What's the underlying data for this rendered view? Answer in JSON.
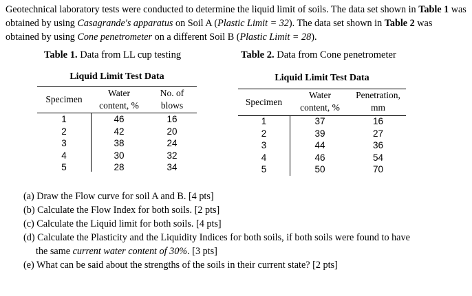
{
  "intro": {
    "p1": "Geotechnical laboratory tests were conducted to determine the liquid limit of soils. The data set shown in ",
    "table1_ref": "Table 1",
    "p2": " was obtained by using ",
    "apparatus1": "Casagrande's apparatus",
    "p3": " on Soil A (",
    "pl_a": "Plastic Limit = 32",
    "p4": "). The data set shown in ",
    "table2_ref": "Table 2",
    "p5": " was obtained by using ",
    "apparatus2": "Cone penetrometer",
    "p6": " on a different Soil B (",
    "pl_b": "Plastic Limit = 28",
    "p7": ")."
  },
  "table1": {
    "caption_label": "Table 1.",
    "caption_text": " Data from LL cup testing",
    "title": "Liquid Limit Test Data",
    "headers": {
      "specimen": "Specimen",
      "water_line1": "Water",
      "water_line2": "content, %",
      "blows_line1": "No. of",
      "blows_line2": "blows"
    },
    "rows": [
      {
        "specimen": "1",
        "water": "46",
        "blows": "16"
      },
      {
        "specimen": "2",
        "water": "42",
        "blows": "20"
      },
      {
        "specimen": "3",
        "water": "38",
        "blows": "24"
      },
      {
        "specimen": "4",
        "water": "30",
        "blows": "32"
      },
      {
        "specimen": "5",
        "water": "28",
        "blows": "34"
      }
    ]
  },
  "table2": {
    "caption_label": "Table 2.",
    "caption_text": " Data from Cone penetrometer",
    "title": "Liquid Limit Test Data",
    "headers": {
      "specimen": "Specimen",
      "water_line1": "Water",
      "water_line2": "content, %",
      "pen_line1": "Penetration,",
      "pen_line2": "mm"
    },
    "rows": [
      {
        "specimen": "1",
        "water": "37",
        "pen": "16"
      },
      {
        "specimen": "2",
        "water": "39",
        "pen": "27"
      },
      {
        "specimen": "3",
        "water": "44",
        "pen": "36"
      },
      {
        "specimen": "4",
        "water": "46",
        "pen": "54"
      },
      {
        "specimen": "5",
        "water": "50",
        "pen": "70"
      }
    ]
  },
  "questions": {
    "a": "(a) Draw the Flow curve for soil A and B. [4 pts]",
    "b": "(b) Calculate the Flow Index for both soils. [2 pts]",
    "c": "(c) Calculate the Liquid limit for both soils. [4 pts]",
    "d_line1": "(d) Calculate the Plasticity and the Liquidity Indices for both soils, if both soils were found to have",
    "d_line2_pre": "the same ",
    "d_line2_ital": "current water content of 30%",
    "d_line2_post": ". [3 pts]",
    "e": "(e) What can be said about the strengths of the soils in their current state? [2 pts]"
  }
}
